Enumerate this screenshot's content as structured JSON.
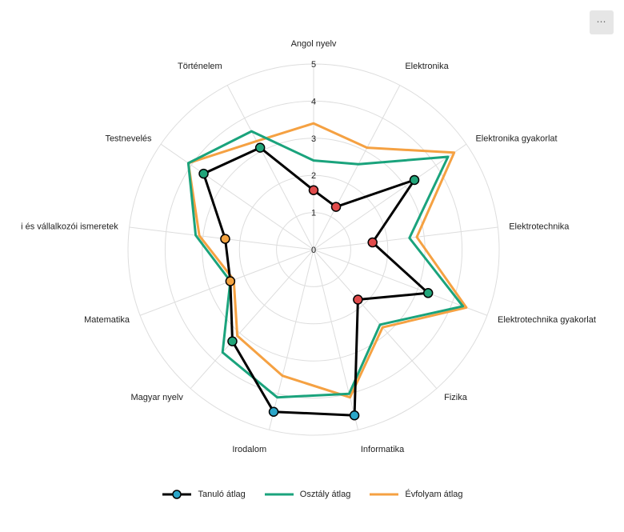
{
  "menu": {
    "label": "⋯"
  },
  "chart_data": {
    "type": "radar",
    "axes": [
      "Angol nyelv",
      "Elektronika",
      "Elektronika gyakorlat",
      "Elektrotechnika",
      "Elektrotechnika gyakorlat",
      "Fizika",
      "Informatika",
      "Irodalom",
      "Magyar nyelv",
      "Matematika",
      "Gazdasági és vállalkozói ismeretek",
      "Testnevelés",
      "Történelem"
    ],
    "axis_label_display": [
      "Angol nyelv",
      "Elektronika",
      "Elektronika gyakorlat",
      "Elektrotechnika",
      "Elektrotechnika gyakorlat",
      "Fizika",
      "Informatika",
      "Irodalom",
      "Magyar nyelv",
      "Matematika",
      "i és vállalkozói ismeretek",
      "Testnevelés",
      "Történelem"
    ],
    "range": [
      0,
      5
    ],
    "ticks": [
      0,
      1,
      2,
      3,
      4,
      5
    ],
    "grid": true,
    "legend_position": "bottom",
    "series": [
      {
        "name": "Tanuló átlag",
        "color": "#000000",
        "values": [
          1.6,
          1.3,
          3.3,
          1.6,
          3.3,
          1.8,
          4.6,
          4.5,
          3.3,
          2.4,
          2.4,
          3.6,
          3.1
        ],
        "point_colors": [
          "#e04b4b",
          "#e04b4b",
          "#22a57a",
          "#e04b4b",
          "#22a57a",
          "#e04b4b",
          "#2ba6c9",
          "#2ba6c9",
          "#22a57a",
          "#f4a340",
          "#f4a340",
          "#22a57a",
          "#22a57a"
        ]
      },
      {
        "name": "Osztály átlag",
        "color": "#1aa37c",
        "values": [
          2.4,
          2.6,
          4.4,
          2.6,
          4.3,
          2.7,
          4.0,
          4.1,
          3.7,
          2.4,
          3.2,
          4.1,
          3.6
        ]
      },
      {
        "name": "Évfolyam átlag",
        "color": "#f5a142",
        "values": [
          3.4,
          3.1,
          4.6,
          2.8,
          4.4,
          2.8,
          4.1,
          3.5,
          3.1,
          2.3,
          3.1,
          4.1,
          3.3
        ]
      }
    ]
  }
}
